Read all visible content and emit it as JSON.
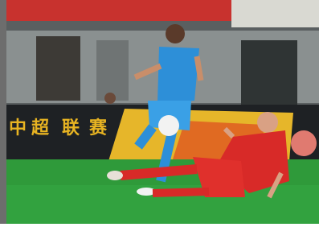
{
  "board": {
    "chars": [
      "中",
      "超",
      "联",
      "赛"
    ]
  }
}
